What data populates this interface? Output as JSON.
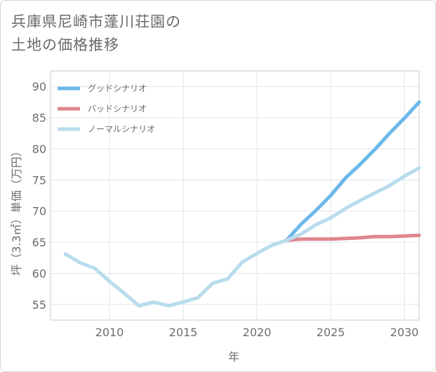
{
  "chart_data": {
    "type": "line",
    "title_lines": [
      "兵庫県尼崎市蓬川荘園の",
      "土地の価格推移"
    ],
    "xlabel": "年",
    "ylabel": "坪（3.3㎡）単価（万円）",
    "xlim": [
      2006,
      2031
    ],
    "ylim": [
      52.5,
      92.5
    ],
    "x_ticks": [
      2010,
      2015,
      2020,
      2025,
      2030
    ],
    "y_ticks": [
      55,
      60,
      65,
      70,
      75,
      80,
      85,
      90
    ],
    "grid": true,
    "legend_position": "top-left",
    "series": [
      {
        "name": "グッドシナリオ",
        "color": "#6cb8ea",
        "x": [
          2022,
          2023,
          2024,
          2025,
          2026,
          2027,
          2028,
          2029,
          2030,
          2031
        ],
        "y": [
          65.3,
          67.9,
          70.1,
          72.5,
          75.3,
          77.5,
          79.9,
          82.5,
          84.9,
          87.5
        ]
      },
      {
        "name": "バッドシナリオ",
        "color": "#e0868d",
        "x": [
          2022,
          2023,
          2024,
          2025,
          2026,
          2027,
          2028,
          2029,
          2030,
          2031
        ],
        "y": [
          65.3,
          65.5,
          65.5,
          65.5,
          65.6,
          65.7,
          65.9,
          65.9,
          66.0,
          66.1
        ]
      },
      {
        "name": "ノーマルシナリオ",
        "color": "#b8dcec",
        "x": [
          2007,
          2008,
          2009,
          2010,
          2011,
          2012,
          2013,
          2014,
          2015,
          2016,
          2017,
          2018,
          2019,
          2020,
          2021,
          2022,
          2023,
          2024,
          2025,
          2026,
          2027,
          2028,
          2029,
          2030,
          2031
        ],
        "y": [
          63.1,
          61.7,
          60.8,
          58.7,
          56.8,
          54.8,
          55.4,
          54.8,
          55.4,
          56.1,
          58.4,
          59.1,
          61.8,
          63.2,
          64.5,
          65.3,
          66.3,
          67.8,
          68.9,
          70.4,
          71.7,
          72.9,
          74.1,
          75.6,
          76.9
        ]
      }
    ]
  }
}
